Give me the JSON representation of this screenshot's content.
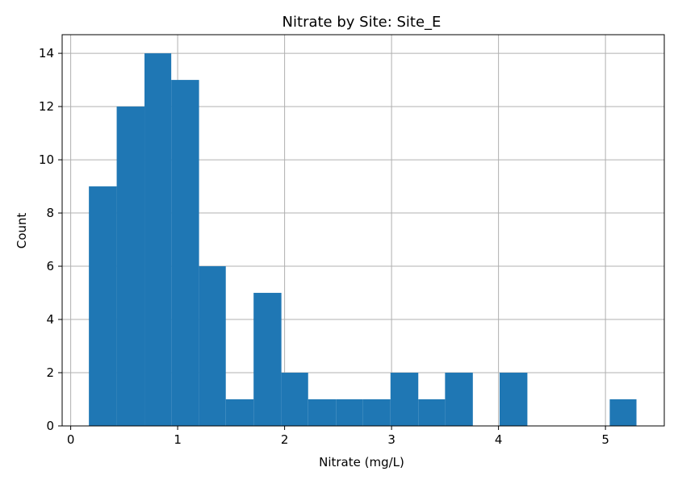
{
  "chart_data": {
    "type": "bar",
    "title": "Nitrate by Site: Site_E",
    "xlabel": "Nitrate (mg/L)",
    "ylabel": "Count",
    "xlim": [
      -0.08,
      5.55
    ],
    "ylim": [
      0,
      14.7
    ],
    "xticks": [
      0,
      1,
      2,
      3,
      4,
      5
    ],
    "yticks": [
      0,
      2,
      4,
      6,
      8,
      10,
      12,
      14
    ],
    "grid": true,
    "bar_color": "#1f77b4",
    "bins": [
      {
        "x0": 0.17,
        "x1": 0.43,
        "count": 9
      },
      {
        "x0": 0.43,
        "x1": 0.69,
        "count": 12
      },
      {
        "x0": 0.69,
        "x1": 0.94,
        "count": 14
      },
      {
        "x0": 0.94,
        "x1": 1.2,
        "count": 13
      },
      {
        "x0": 1.2,
        "x1": 1.45,
        "count": 6
      },
      {
        "x0": 1.45,
        "x1": 1.71,
        "count": 1
      },
      {
        "x0": 1.71,
        "x1": 1.97,
        "count": 5
      },
      {
        "x0": 1.97,
        "x1": 2.22,
        "count": 2
      },
      {
        "x0": 2.22,
        "x1": 2.48,
        "count": 1
      },
      {
        "x0": 2.48,
        "x1": 2.73,
        "count": 1
      },
      {
        "x0": 2.73,
        "x1": 2.99,
        "count": 1
      },
      {
        "x0": 2.99,
        "x1": 3.25,
        "count": 2
      },
      {
        "x0": 3.25,
        "x1": 3.5,
        "count": 1
      },
      {
        "x0": 3.5,
        "x1": 3.76,
        "count": 2
      },
      {
        "x0": 3.76,
        "x1": 4.01,
        "count": 0
      },
      {
        "x0": 4.01,
        "x1": 4.27,
        "count": 2
      },
      {
        "x0": 4.27,
        "x1": 4.53,
        "count": 0
      },
      {
        "x0": 4.53,
        "x1": 4.78,
        "count": 0
      },
      {
        "x0": 4.78,
        "x1": 5.04,
        "count": 0
      },
      {
        "x0": 5.04,
        "x1": 5.29,
        "count": 1
      }
    ]
  }
}
